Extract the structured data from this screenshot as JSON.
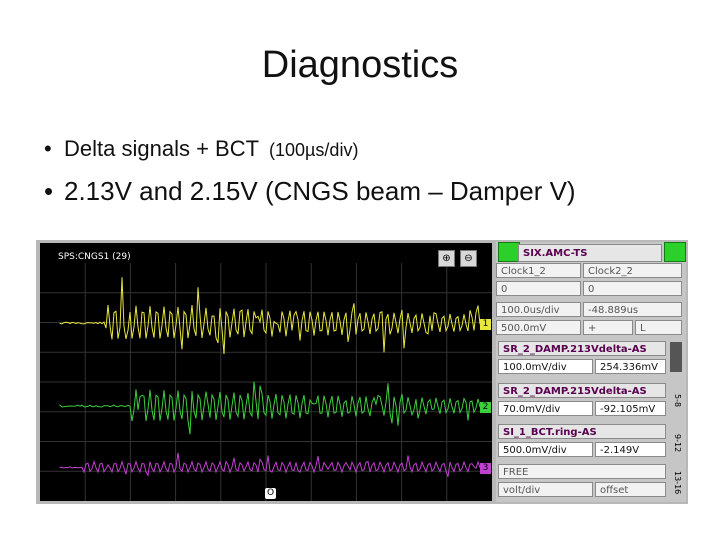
{
  "slide": {
    "title": "Diagnostics",
    "bullet1": "Delta signals + BCT",
    "bullet1_small": "(100µs/div)",
    "bullet2": "2.13V and 2.15V (CNGS beam – Damper V)",
    "bullet_glyph": "•"
  },
  "scope": {
    "screen_title": "SPS:CNGS1 (29)",
    "zoom_in_icon": "zoom-in-icon",
    "zoom_out_icon": "zoom-out-icon",
    "trace_markers": [
      "1",
      "2",
      "3"
    ],
    "trigger_marker": "O",
    "colors": {
      "ch1": "#e8e83a",
      "ch2": "#3ccf3c",
      "ch3": "#c040d0",
      "screen": "#000000"
    }
  },
  "panel": {
    "header": "SIX.AMC-TS",
    "clock1_label": "Clock1_2",
    "clock2_label": "Clock2_2",
    "clock1_value": "0",
    "clock2_value": "0",
    "timebase": "100.0us/div",
    "time_offset": "-48.889us",
    "trig_level": "500.0mV",
    "trig_slope": "+",
    "trig_mode": "L",
    "channels": [
      {
        "name": "SR_2_DAMP.213Vdelta-AS",
        "scale": "100.0mV/div",
        "value": "254.336mV"
      },
      {
        "name": "SR_2_DAMP.215Vdelta-AS",
        "scale": "70.0mV/div",
        "value": "-92.105mV"
      },
      {
        "name": "SI_1_BCT.ring-AS",
        "scale": "500.0mV/div",
        "value": "-2.149V"
      }
    ],
    "free_label": "FREE",
    "free_scale": "volt/div",
    "free_offset": "offset",
    "side_tabs": [
      "5-8",
      "9-12",
      "13-16"
    ]
  }
}
